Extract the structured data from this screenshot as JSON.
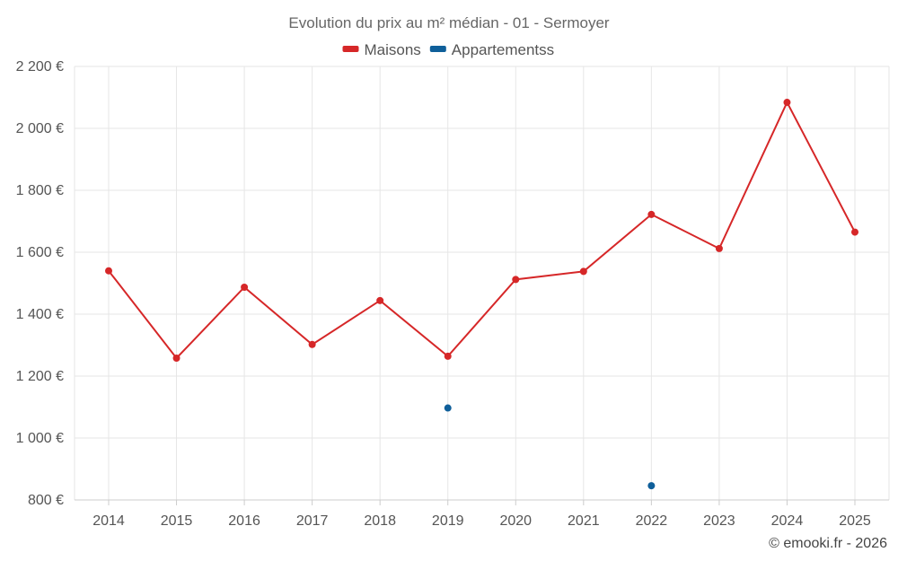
{
  "chart_data": {
    "type": "line",
    "title": "Evolution du prix au m² médian - 01 - Sermoyer",
    "xlabel": "",
    "ylabel": "",
    "categories": [
      "2014",
      "2015",
      "2016",
      "2017",
      "2018",
      "2019",
      "2020",
      "2021",
      "2022",
      "2023",
      "2024",
      "2025"
    ],
    "ylim": [
      800,
      2200
    ],
    "yticks": [
      800,
      1000,
      1200,
      1400,
      1600,
      1800,
      2000,
      2200
    ],
    "ytick_labels": [
      "800 €",
      "1 000 €",
      "1 200 €",
      "1 400 €",
      "1 600 €",
      "1 800 €",
      "2 000 €",
      "2 200 €"
    ],
    "grid": true,
    "legend_position": "top-center",
    "series": [
      {
        "name": "Maisons",
        "color": "#d62728",
        "values": [
          1540,
          1258,
          1487,
          1302,
          1444,
          1264,
          1512,
          1538,
          1722,
          1612,
          2084,
          1665
        ]
      },
      {
        "name": "Appartementss",
        "color": "#0f5f9a",
        "values": [
          null,
          null,
          null,
          null,
          null,
          1097,
          null,
          null,
          846,
          null,
          null,
          null
        ]
      }
    ]
  },
  "credit": "© emooki.fr - 2026"
}
